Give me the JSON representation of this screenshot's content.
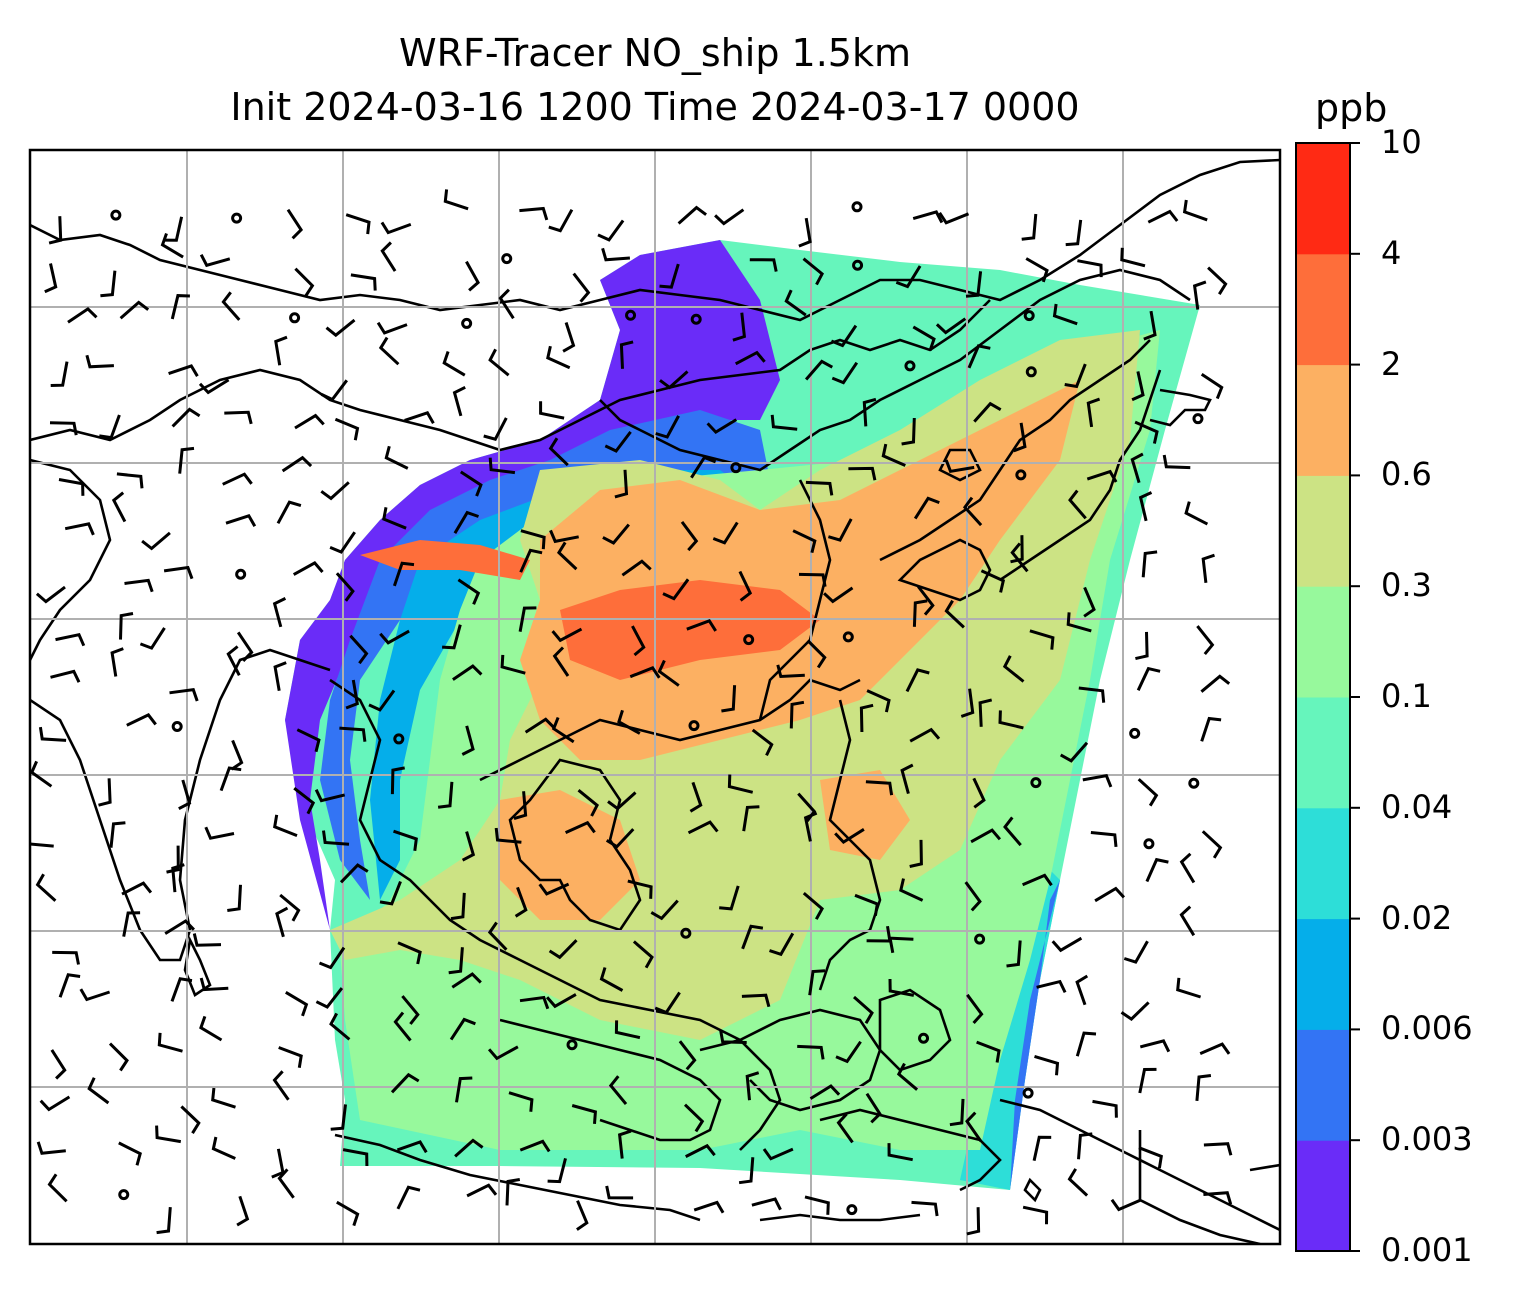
{
  "title": {
    "line1": "WRF-Tracer NO_ship 1.5km",
    "line2": "Init 2024-03-16 1200 Time 2024-03-17 0000"
  },
  "colorbar": {
    "unit": "ppb",
    "ticks": [
      "0.001",
      "0.003",
      "0.006",
      "0.02",
      "0.04",
      "0.1",
      "0.3",
      "0.6",
      "2",
      "4",
      "10"
    ],
    "colors": [
      "#6a2cf8",
      "#3374f4",
      "#05aeea",
      "#2dded8",
      "#66f5bc",
      "#97f99c",
      "#cce384",
      "#fcb062",
      "#fe6e3a",
      "#ff2a14"
    ]
  },
  "map": {
    "frame_color": "#000000",
    "grid_color": "#b0b0b0",
    "coastline_color": "#000000",
    "wind_barb_color": "#000000"
  }
}
